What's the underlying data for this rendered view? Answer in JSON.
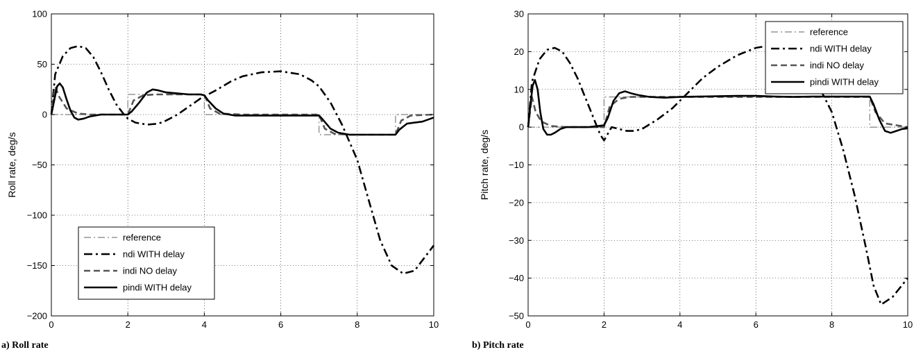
{
  "chart_data": [
    {
      "type": "line",
      "caption": "a) Roll rate",
      "xlabel": "",
      "ylabel": "Roll rate, deg/s",
      "xlim": [
        0,
        10
      ],
      "ylim": [
        -200,
        100
      ],
      "xticks": [
        0,
        2,
        4,
        6,
        8,
        10
      ],
      "yticks": [
        -200,
        -150,
        -100,
        -50,
        0,
        50,
        100
      ],
      "ytick_labels": [
        "−200",
        "−150",
        "−100",
        "−50",
        "0",
        "50",
        "100"
      ],
      "grid": true,
      "legend_position": "bottom-left",
      "series": [
        {
          "name": "reference",
          "style": "dashdot-thin",
          "color": "#808080",
          "x": [
            0,
            2,
            2,
            4,
            4,
            7,
            7,
            9,
            9,
            10
          ],
          "y": [
            0,
            0,
            20,
            20,
            0,
            0,
            -20,
            -20,
            0,
            0
          ]
        },
        {
          "name": "ndi WITH delay",
          "style": "dashdot-thick",
          "color": "#000000",
          "x": [
            0,
            0.1,
            0.3,
            0.5,
            0.7,
            0.9,
            1.1,
            1.3,
            1.5,
            1.7,
            1.9,
            2.0,
            2.2,
            2.5,
            2.8,
            3.0,
            3.3,
            3.6,
            3.9,
            4.0,
            4.3,
            4.7,
            5.0,
            5.5,
            6.0,
            6.5,
            6.8,
            7.0,
            7.3,
            7.6,
            8.0,
            8.3,
            8.6,
            8.9,
            9.2,
            9.5,
            9.8,
            10.0
          ],
          "y": [
            0,
            40,
            58,
            66,
            68,
            66,
            57,
            42,
            25,
            10,
            0,
            -4,
            -8,
            -10,
            -9,
            -6,
            0,
            8,
            16,
            18,
            24,
            33,
            38,
            42,
            43,
            40,
            34,
            28,
            12,
            -10,
            -45,
            -85,
            -125,
            -150,
            -158,
            -155,
            -140,
            -130
          ]
        },
        {
          "name": "indi NO delay",
          "style": "dashed",
          "color": "#555555",
          "x": [
            0,
            0.1,
            0.2,
            0.4,
            0.7,
            1.0,
            2.0,
            2.15,
            2.4,
            2.7,
            3.0,
            4.0,
            4.15,
            4.4,
            5.0,
            7.0,
            7.15,
            7.4,
            7.8,
            9.0,
            9.15,
            9.4,
            10.0
          ],
          "y": [
            0,
            28,
            18,
            6,
            1,
            0,
            0,
            14,
            19,
            20,
            20,
            20,
            6,
            1,
            0,
            0,
            -14,
            -19,
            -20,
            -20,
            -6,
            -1,
            0
          ]
        },
        {
          "name": "pindi WITH delay",
          "style": "solid-thick",
          "color": "#000000",
          "x": [
            0,
            0.08,
            0.15,
            0.22,
            0.3,
            0.4,
            0.5,
            0.6,
            0.7,
            0.85,
            1.0,
            1.3,
            1.6,
            2.0,
            2.1,
            2.3,
            2.5,
            2.65,
            2.8,
            3.0,
            3.3,
            3.6,
            3.9,
            4.0,
            4.1,
            4.3,
            4.5,
            4.8,
            5.0,
            6.0,
            7.0,
            7.1,
            7.3,
            7.5,
            7.8,
            8.2,
            9.0,
            9.1,
            9.3,
            9.5,
            9.7,
            10.0
          ],
          "y": [
            0,
            15,
            28,
            31,
            27,
            15,
            4,
            -3,
            -5,
            -4,
            -2,
            0,
            0,
            0,
            3,
            12,
            22,
            25,
            24,
            22,
            21,
            20,
            20,
            19,
            14,
            6,
            1,
            -1,
            -1,
            -1,
            -1,
            -5,
            -14,
            -18,
            -20,
            -20,
            -20,
            -15,
            -9,
            -8,
            -7,
            -3
          ]
        }
      ]
    },
    {
      "type": "line",
      "caption": "b) Pitch rate",
      "xlabel": "",
      "ylabel": "Pitch rate, deg/s",
      "xlim": [
        0,
        10
      ],
      "ylim": [
        -50,
        30
      ],
      "xticks": [
        0,
        2,
        4,
        6,
        8,
        10
      ],
      "yticks": [
        -50,
        -40,
        -30,
        -20,
        -10,
        0,
        10,
        20,
        30
      ],
      "ytick_labels": [
        "−50",
        "−40",
        "−30",
        "−20",
        "−10",
        "0",
        "10",
        "20",
        "30"
      ],
      "grid": true,
      "legend_position": "top-right",
      "series": [
        {
          "name": "reference",
          "style": "dashdot-thin",
          "color": "#808080",
          "x": [
            0,
            2,
            2,
            9,
            9,
            10
          ],
          "y": [
            0,
            0,
            8,
            8,
            0,
            0
          ]
        },
        {
          "name": "ndi WITH delay",
          "style": "dashdot-thick",
          "color": "#000000",
          "x": [
            0,
            0.1,
            0.3,
            0.5,
            0.7,
            0.9,
            1.1,
            1.3,
            1.5,
            1.7,
            1.9,
            2.0,
            2.2,
            2.4,
            2.6,
            2.8,
            3.0,
            3.4,
            3.8,
            4.2,
            4.6,
            5.0,
            5.5,
            6.0,
            6.3,
            6.6,
            7.0,
            7.3,
            7.6,
            8.0,
            8.3,
            8.6,
            8.9,
            9.1,
            9.3,
            9.6,
            10.0
          ],
          "y": [
            0,
            12,
            18,
            20.5,
            21,
            20,
            17,
            13,
            8,
            3,
            -2,
            -3.5,
            0,
            -0.5,
            -1,
            -1,
            -0.5,
            2,
            5,
            9,
            13,
            16,
            19,
            21,
            21.5,
            21,
            19.5,
            17,
            12,
            4,
            -6,
            -18,
            -32,
            -42,
            -47,
            -45,
            -40
          ]
        },
        {
          "name": "indi NO delay",
          "style": "dashed",
          "color": "#555555",
          "x": [
            0,
            0.1,
            0.2,
            0.35,
            0.6,
            1.0,
            2.0,
            2.15,
            2.4,
            2.7,
            3.0,
            9.0,
            9.15,
            9.4,
            10.0
          ],
          "y": [
            0,
            8,
            4,
            1.5,
            0.3,
            0,
            0,
            5.5,
            7.5,
            8,
            8,
            8,
            4,
            1,
            0
          ]
        },
        {
          "name": "pindi WITH delay",
          "style": "solid-thick",
          "color": "#000000",
          "x": [
            0,
            0.06,
            0.12,
            0.18,
            0.25,
            0.32,
            0.4,
            0.5,
            0.6,
            0.7,
            0.85,
            1.0,
            1.3,
            1.6,
            2.0,
            2.1,
            2.25,
            2.4,
            2.55,
            2.7,
            2.9,
            3.2,
            3.6,
            4.0,
            4.5,
            5.0,
            5.5,
            6.0,
            6.5,
            7.0,
            7.5,
            8.0,
            8.5,
            9.0,
            9.1,
            9.25,
            9.4,
            9.55,
            9.7,
            9.85,
            10.0
          ],
          "y": [
            0,
            6,
            11,
            12.5,
            10,
            4,
            -0.5,
            -2,
            -2,
            -1.5,
            -0.5,
            0,
            0,
            0,
            0.5,
            2.5,
            7,
            9,
            9.5,
            9,
            8.5,
            8,
            7.8,
            8,
            8.1,
            8.2,
            8.3,
            8.3,
            8.1,
            8,
            8.1,
            8.1,
            8.1,
            8.1,
            6,
            2,
            -1,
            -1.5,
            -1,
            -0.5,
            -0.3
          ]
        }
      ]
    }
  ]
}
